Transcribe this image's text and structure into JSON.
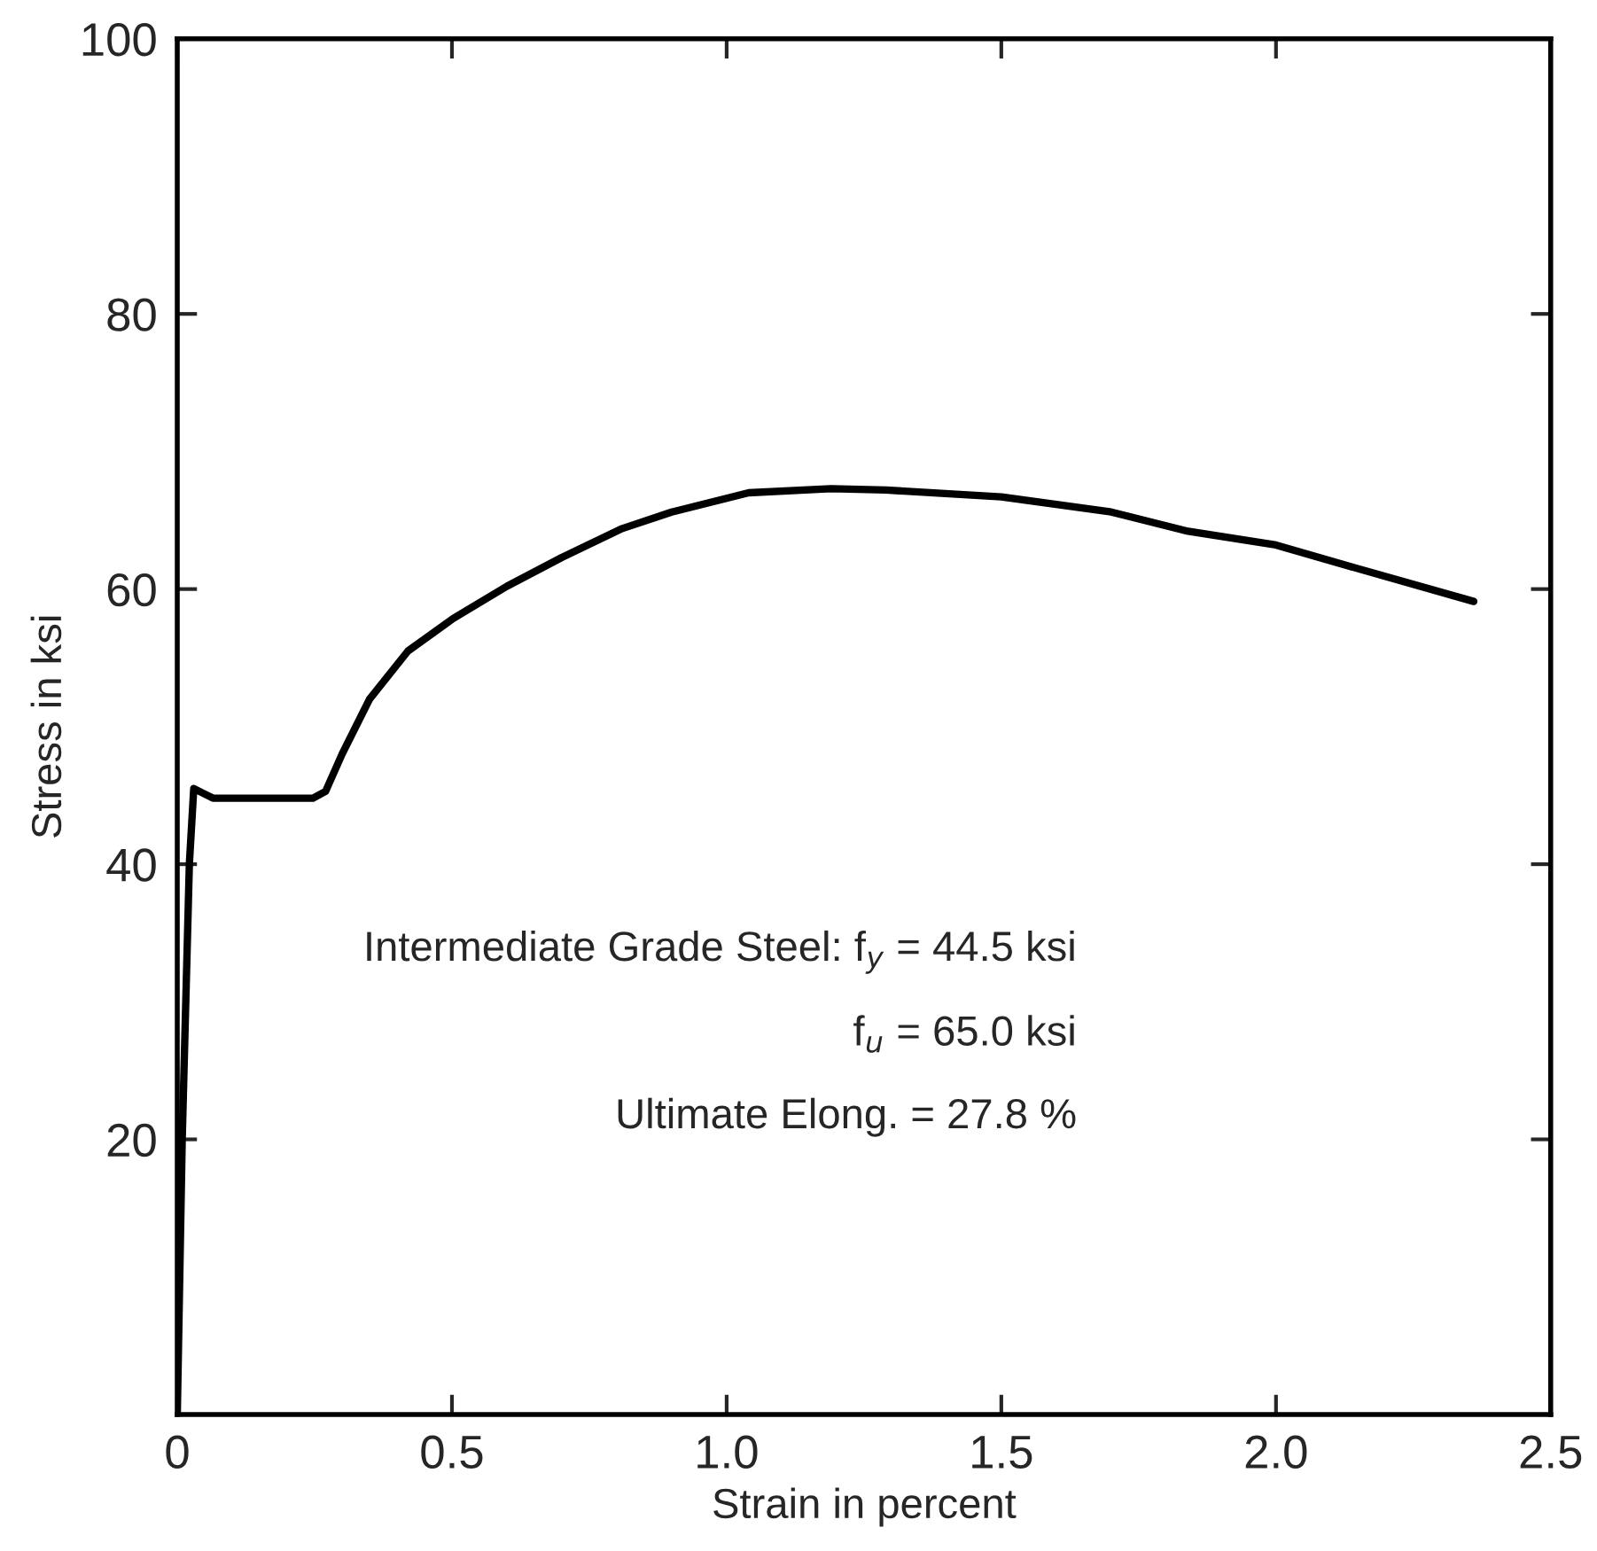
{
  "chart_data": {
    "type": "line",
    "xlabel": "Strain in percent",
    "ylabel": "Stress in ksi",
    "series": [
      {
        "color": "#000000",
        "x": [
          0.0,
          0.009,
          0.022,
          0.03,
          0.045,
          0.065,
          0.15,
          0.247,
          0.27,
          0.3,
          0.35,
          0.42,
          0.5,
          0.6,
          0.7,
          0.81,
          0.9,
          1.04,
          1.19,
          1.29,
          1.5,
          1.7,
          1.84,
          2.0,
          2.13,
          2.36
        ],
        "values": [
          0,
          20,
          40,
          45.5,
          45.2,
          44.8,
          44.8,
          44.8,
          45.3,
          48,
          52,
          55.5,
          57.8,
          60.2,
          62.3,
          64.4,
          65.6,
          67,
          67.3,
          67.2,
          66.7,
          65.6,
          64.2,
          63.2,
          61.7,
          59.1
        ]
      }
    ],
    "xlim": [
      0,
      2.5
    ],
    "ylim": [
      0,
      100
    ],
    "xticks": [
      0,
      {
        "value": 0.5,
        "label": "0.5"
      },
      {
        "value": 1.0,
        "label": "1.0"
      },
      {
        "value": 1.5,
        "label": "1.5"
      },
      {
        "value": 2.0,
        "label": "2.0"
      },
      {
        "value": 2.5,
        "label": "2.5"
      }
    ],
    "yticks": [
      20,
      40,
      60,
      80,
      100
    ],
    "grid": false,
    "legend": false,
    "marker": "none",
    "line_style": "solid",
    "annotations": [
      "Intermediate Grade Steel: f$_{y}$ = 44.5 ksi",
      "f$_{u}$ = 65.0 ksi",
      "Ultimate Elong. = 27.8 %"
    ]
  }
}
